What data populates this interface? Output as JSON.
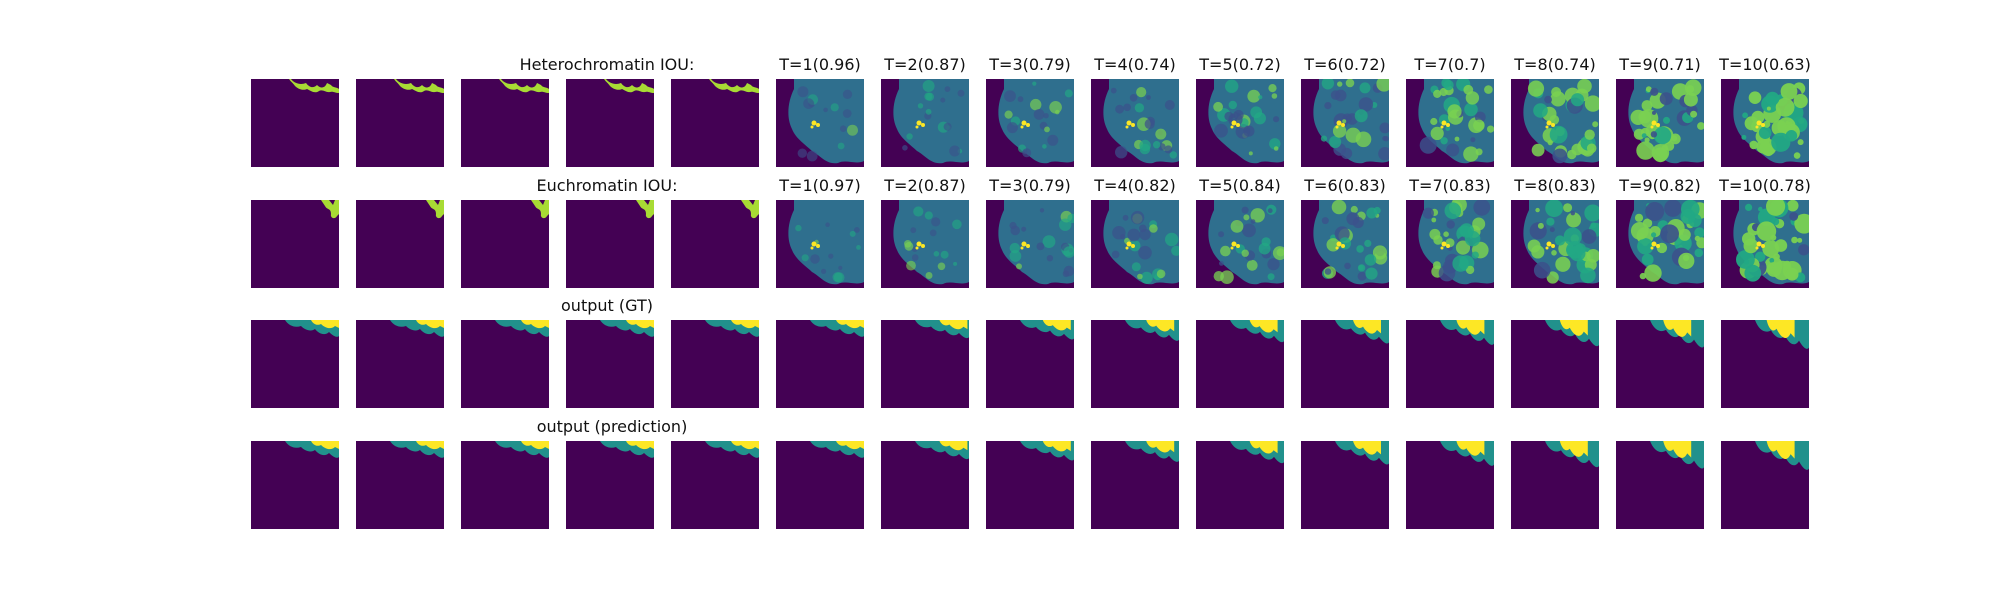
{
  "rows": [
    {
      "key": "heterochromatin",
      "label": "Heterochromatin IOU:",
      "kind": "binary",
      "steps": [
        {
          "label": "T=1(0.96)",
          "t": 1,
          "iou": 0.96
        },
        {
          "label": "T=2(0.87)",
          "t": 2,
          "iou": 0.87
        },
        {
          "label": "T=3(0.79)",
          "t": 3,
          "iou": 0.79
        },
        {
          "label": "T=4(0.74)",
          "t": 4,
          "iou": 0.74
        },
        {
          "label": "T=5(0.72)",
          "t": 5,
          "iou": 0.72
        },
        {
          "label": "T=6(0.72)",
          "t": 6,
          "iou": 0.72
        },
        {
          "label": "T=7(0.7)",
          "t": 7,
          "iou": 0.7
        },
        {
          "label": "T=8(0.74)",
          "t": 8,
          "iou": 0.74
        },
        {
          "label": "T=9(0.71)",
          "t": 9,
          "iou": 0.71
        },
        {
          "label": "T=10(0.63)",
          "t": 10,
          "iou": 0.63
        }
      ]
    },
    {
      "key": "euchromatin",
      "label": "Euchromatin IOU:",
      "kind": "binary",
      "steps": [
        {
          "label": "T=1(0.97)",
          "t": 1,
          "iou": 0.97
        },
        {
          "label": "T=2(0.87)",
          "t": 2,
          "iou": 0.87
        },
        {
          "label": "T=3(0.79)",
          "t": 3,
          "iou": 0.79
        },
        {
          "label": "T=4(0.82)",
          "t": 4,
          "iou": 0.82
        },
        {
          "label": "T=5(0.84)",
          "t": 5,
          "iou": 0.84
        },
        {
          "label": "T=6(0.83)",
          "t": 6,
          "iou": 0.83
        },
        {
          "label": "T=7(0.83)",
          "t": 7,
          "iou": 0.83
        },
        {
          "label": "T=8(0.83)",
          "t": 8,
          "iou": 0.83
        },
        {
          "label": "T=9(0.82)",
          "t": 9,
          "iou": 0.82
        },
        {
          "label": "T=10(0.78)",
          "t": 10,
          "iou": 0.78
        }
      ]
    },
    {
      "key": "output-gt",
      "label": "output (GT)",
      "kind": "segmentation",
      "steps": []
    },
    {
      "key": "output-prediction",
      "label": "output (prediction)",
      "kind": "segmentation",
      "steps": []
    }
  ],
  "colors": {
    "background": "#440154",
    "binary_mask": "#a8db34",
    "seg_teal": "#21918c",
    "seg_yellow": "#fde725",
    "heat_base": "#2f6f8e",
    "heat_low": "#3b528b",
    "heat_mid": "#22a884",
    "heat_high": "#7ad151",
    "heat_peak": "#fde725"
  }
}
